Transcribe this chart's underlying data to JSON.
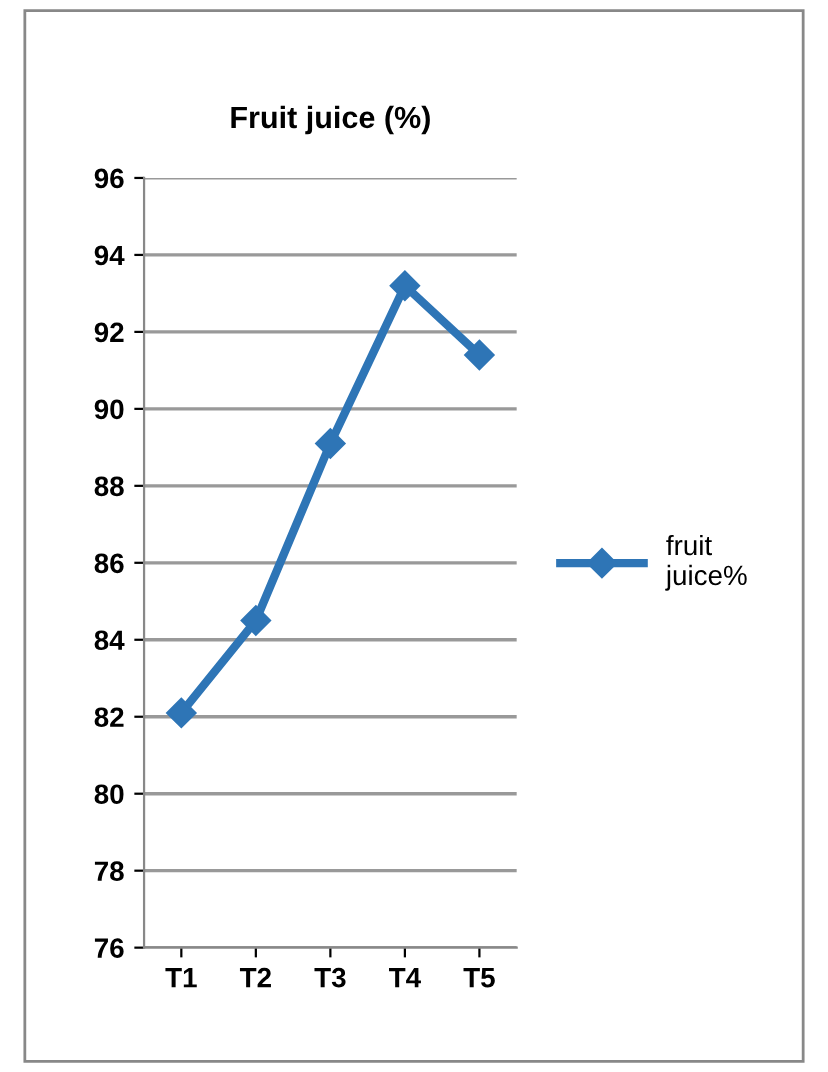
{
  "chart_data": {
    "type": "line",
    "title": "Fruit juice (%)",
    "categories": [
      "T1",
      "T2",
      "T3",
      "T4",
      "T5"
    ],
    "series": [
      {
        "name": "fruit\njuice%",
        "color": "#2e75b6",
        "values": [
          82.1,
          84.5,
          89.1,
          93.2,
          91.4
        ]
      }
    ],
    "ylim": [
      76,
      96
    ],
    "yticks": [
      76,
      78,
      80,
      82,
      84,
      86,
      88,
      90,
      92,
      94,
      96
    ],
    "grid": "y",
    "legend": "right",
    "marker": "diamond",
    "line_style": "solid"
  }
}
